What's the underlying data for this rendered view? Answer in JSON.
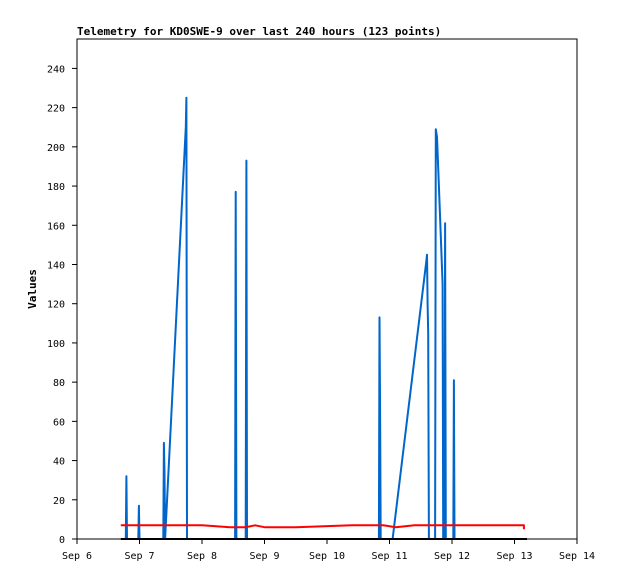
{
  "chart_data": {
    "type": "line",
    "title": "Telemetry for KD0SWE-9 over last 240 hours (123 points)",
    "xlabel": "",
    "ylabel": "Values",
    "x_tick_labels": [
      "Sep 6",
      "Sep 7",
      "Sep 8",
      "Sep 9",
      "Sep 10",
      "Sep 11",
      "Sep 12",
      "Sep 13",
      "Sep 14"
    ],
    "x_tick_values": [
      6,
      7,
      8,
      9,
      10,
      11,
      12,
      13,
      14
    ],
    "xlim": [
      6,
      14
    ],
    "y_ticks": [
      0,
      20,
      40,
      60,
      80,
      100,
      120,
      140,
      160,
      180,
      200,
      220,
      240
    ],
    "ylim": [
      0,
      255
    ],
    "grid": false,
    "legend": "none",
    "series": [
      {
        "color": "#0066cc",
        "points": [
          [
            6.78,
            0
          ],
          [
            6.79,
            32
          ],
          [
            6.8,
            0
          ],
          [
            6.98,
            0
          ],
          [
            6.99,
            17
          ],
          [
            7.0,
            0
          ],
          [
            7.38,
            0
          ],
          [
            7.39,
            49
          ],
          [
            7.4,
            34
          ],
          [
            7.41,
            0
          ],
          [
            7.74,
            210
          ],
          [
            7.75,
            225
          ],
          [
            7.76,
            0
          ],
          [
            8.53,
            0
          ],
          [
            8.54,
            177
          ],
          [
            8.55,
            0
          ],
          [
            8.7,
            0
          ],
          [
            8.71,
            193
          ],
          [
            8.72,
            0
          ],
          [
            10.83,
            0
          ],
          [
            10.84,
            113
          ],
          [
            10.85,
            65
          ],
          [
            10.86,
            0
          ],
          [
            11.05,
            0
          ],
          [
            11.59,
            142
          ],
          [
            11.6,
            145
          ],
          [
            11.61,
            120
          ],
          [
            11.62,
            105
          ],
          [
            11.63,
            0
          ],
          [
            11.73,
            0
          ],
          [
            11.74,
            209
          ],
          [
            11.76,
            205
          ],
          [
            11.79,
            180
          ],
          [
            11.85,
            130
          ],
          [
            11.86,
            0
          ],
          [
            11.88,
            0
          ],
          [
            11.89,
            161
          ],
          [
            11.9,
            0
          ],
          [
            12.02,
            0
          ],
          [
            12.03,
            81
          ],
          [
            12.04,
            0
          ]
        ]
      },
      {
        "color": "#ff0000",
        "points": [
          [
            6.7,
            7
          ],
          [
            7.5,
            7
          ],
          [
            8.0,
            7
          ],
          [
            8.45,
            6
          ],
          [
            8.7,
            6
          ],
          [
            8.85,
            7
          ],
          [
            9.0,
            6
          ],
          [
            9.5,
            6
          ],
          [
            10.4,
            7
          ],
          [
            10.9,
            7
          ],
          [
            11.1,
            6
          ],
          [
            11.4,
            7
          ],
          [
            12.0,
            7
          ],
          [
            12.6,
            7
          ],
          [
            13.15,
            7
          ],
          [
            13.15,
            5
          ]
        ]
      },
      {
        "color": "#000000",
        "points": [
          [
            6.7,
            0
          ],
          [
            13.2,
            0
          ]
        ]
      }
    ]
  }
}
